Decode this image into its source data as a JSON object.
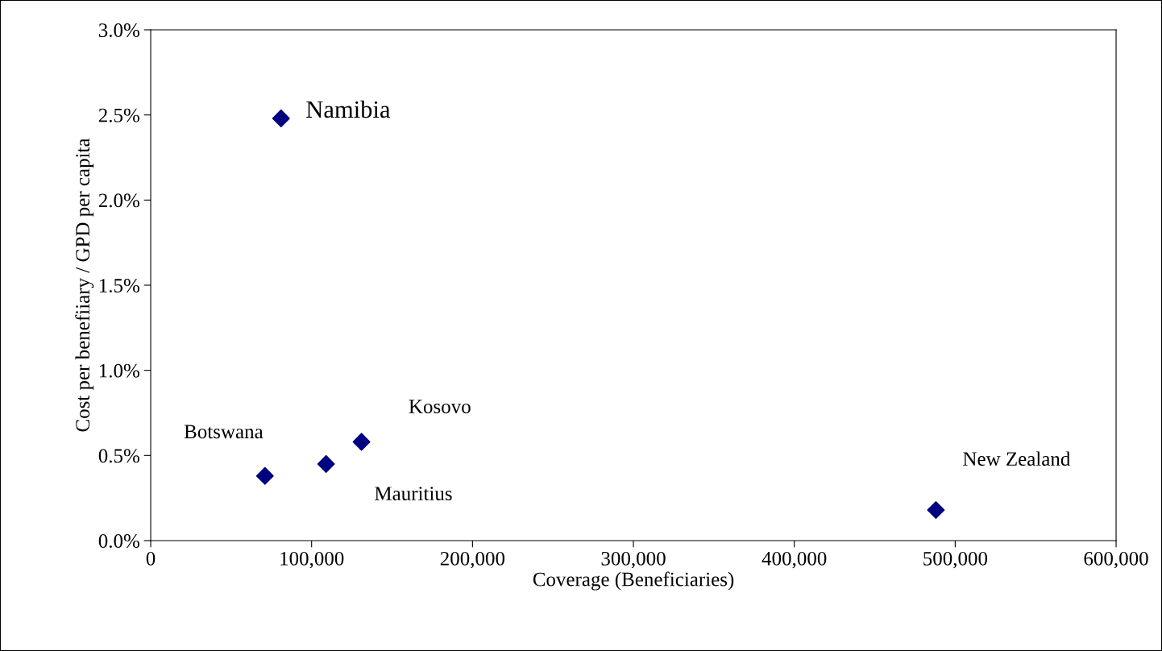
{
  "chart_data": {
    "type": "scatter",
    "xlabel": "Coverage (Beneficiaries)",
    "ylabel": "Cost per benefiiary / GPD per capita",
    "x": [
      81000,
      71000,
      109000,
      131000,
      488000
    ],
    "series": [
      {
        "color": "#000080",
        "values": [
          2.48,
          0.38,
          0.45,
          0.58,
          0.18
        ]
      }
    ],
    "annotations": [
      {
        "text": "Namibia",
        "x": 81000,
        "y": 2.48
      },
      {
        "text": "Botswana",
        "x": 71000,
        "y": 0.38
      },
      {
        "text": "Mauritius",
        "x": 109000,
        "y": 0.45
      },
      {
        "text": "Kosovo",
        "x": 131000,
        "y": 0.58
      },
      {
        "text": "New Zealand",
        "x": 488000,
        "y": 0.18
      }
    ],
    "xlim": [
      0,
      600000
    ],
    "xticks": [
      {
        "value": 0,
        "label": "0"
      },
      {
        "value": 100000,
        "label": "100,000"
      },
      {
        "value": 200000,
        "label": "200,000"
      },
      {
        "value": 300000,
        "label": "300,000"
      },
      {
        "value": 400000,
        "label": "400,000"
      },
      {
        "value": 500000,
        "label": "500,000"
      },
      {
        "value": 600000,
        "label": "600,000"
      }
    ],
    "ylim": [
      0,
      3.0
    ],
    "yticks": [
      {
        "value": 0,
        "label": "0.0%"
      },
      {
        "value": 0.5,
        "label": "0.5%"
      },
      {
        "value": 1.0,
        "label": "1.0%"
      },
      {
        "value": 1.5,
        "label": "1.5%"
      },
      {
        "value": 2.0,
        "label": "2.0%"
      },
      {
        "value": 2.5,
        "label": "2.5%"
      },
      {
        "value": 3.0,
        "label": "3.0%"
      }
    ],
    "marker": "diamond",
    "grid": false,
    "legend": false
  }
}
